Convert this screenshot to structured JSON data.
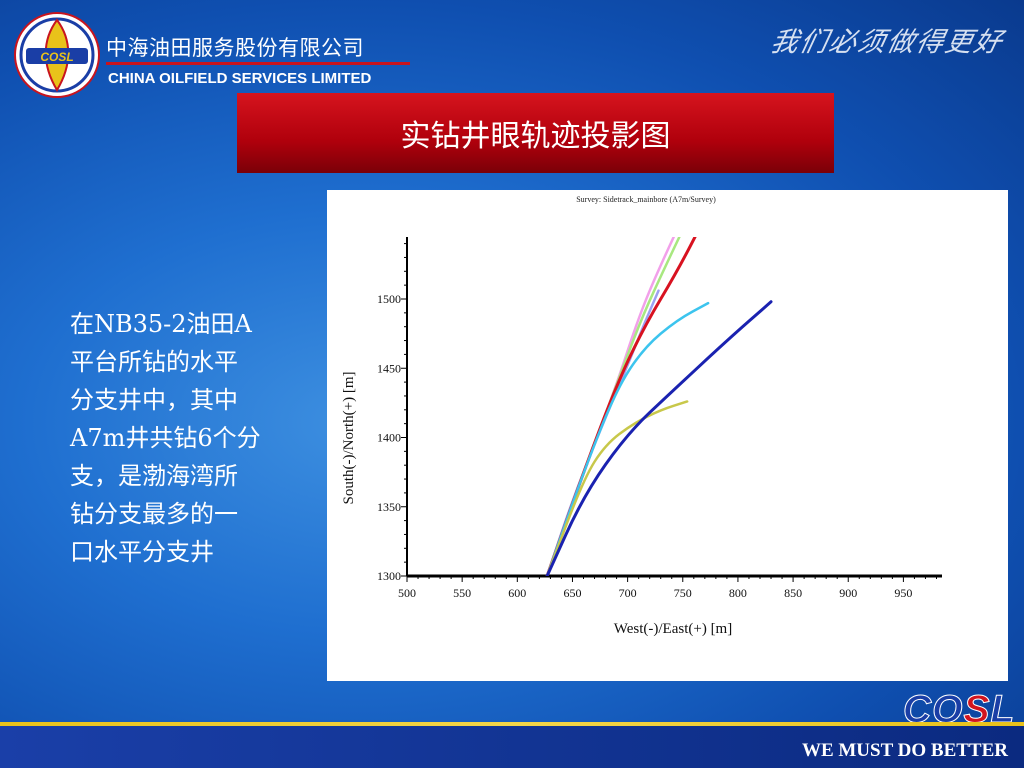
{
  "header": {
    "company_cn": "中海油田服务股份有限公司",
    "company_en": "CHINA OILFIELD SERVICES LIMITED",
    "logo_text": "COSL",
    "slogan": "我们必须做得更好"
  },
  "slide": {
    "title": "实钻井眼轨迹投影图",
    "body_lines": [
      "在NB35-2油田A",
      "平台所钻的水平",
      "分支井中，其中",
      "A7m井共钻6个分",
      "支，是渤海湾所",
      "钻分支最多的一",
      "口水平分支井"
    ]
  },
  "footer": {
    "brand_parts": [
      "CO",
      "S",
      "L"
    ],
    "motto": "WE MUST DO BETTER"
  },
  "colors": {
    "title_red": "#c8101a",
    "footer_gold": "#e9c21a",
    "brand_blue": "#1a3ea6",
    "brand_red": "#d2141e"
  },
  "chart_data": {
    "type": "line",
    "title": "Survey: Sidetrack_mainbore (A7m/Survey)",
    "xlabel": "West(-)/East(+) [m]",
    "ylabel": "South(-)/North(+) [m]",
    "xlim": [
      500,
      985
    ],
    "ylim": [
      1300,
      1550
    ],
    "xticks": [
      500,
      550,
      600,
      650,
      700,
      750,
      800,
      850,
      900,
      950
    ],
    "yticks": [
      1300,
      1350,
      1400,
      1450,
      1500
    ],
    "grid": false,
    "series": [
      {
        "color": "#9da0f2",
        "points": [
          [
            627,
            1300
          ],
          [
            650,
            1355
          ],
          [
            675,
            1405
          ],
          [
            700,
            1452
          ],
          [
            715,
            1482
          ],
          [
            728,
            1506
          ]
        ]
      },
      {
        "color": "#f2a0ea",
        "points": [
          [
            627,
            1300
          ],
          [
            660,
            1375
          ],
          [
            690,
            1438
          ],
          [
            710,
            1487
          ],
          [
            730,
            1525
          ],
          [
            772,
            1596
          ]
        ]
      },
      {
        "color": "#a8e880",
        "points": [
          [
            627,
            1300
          ],
          [
            660,
            1375
          ],
          [
            690,
            1438
          ],
          [
            712,
            1485
          ],
          [
            735,
            1525
          ],
          [
            777,
            1595
          ]
        ]
      },
      {
        "color": "#d81220",
        "points": [
          [
            627,
            1300
          ],
          [
            660,
            1375
          ],
          [
            690,
            1438
          ],
          [
            715,
            1480
          ],
          [
            745,
            1520
          ],
          [
            769,
            1557
          ]
        ]
      },
      {
        "color": "#3cc4ee",
        "points": [
          [
            627,
            1300
          ],
          [
            660,
            1375
          ],
          [
            690,
            1435
          ],
          [
            715,
            1465
          ],
          [
            745,
            1485
          ],
          [
            773,
            1497
          ]
        ]
      },
      {
        "color": "#c8c84a",
        "points": [
          [
            627,
            1300
          ],
          [
            660,
            1370
          ],
          [
            680,
            1395
          ],
          [
            705,
            1410
          ],
          [
            730,
            1420
          ],
          [
            754,
            1426
          ]
        ]
      },
      {
        "color": "#1a22b0",
        "points": [
          [
            627,
            1300
          ],
          [
            660,
            1358
          ],
          [
            700,
            1403
          ],
          [
            740,
            1433
          ],
          [
            790,
            1470
          ],
          [
            830,
            1498
          ]
        ]
      }
    ]
  }
}
